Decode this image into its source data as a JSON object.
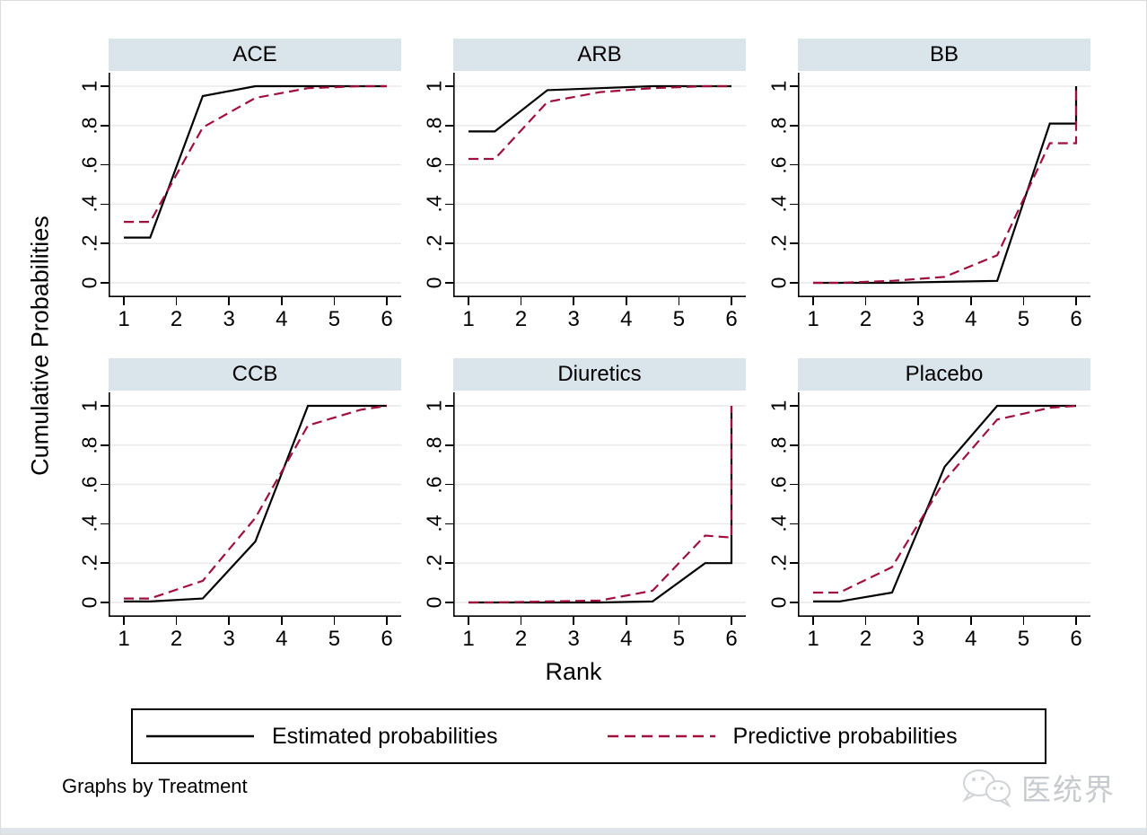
{
  "figure": {
    "y_axis_title": "Cumulative Probabilities",
    "x_axis_title": "Rank",
    "by_note": "Graphs by Treatment",
    "watermark_text": "医统界",
    "watermark_icon": "wechat-icon"
  },
  "colors": {
    "panel_title_bg": "#d9e4eb",
    "gridline": "#e8e8e8",
    "axis": "#000000",
    "estimated": "#000000",
    "predictive": "#a1103c",
    "watermark": "#c7cbce",
    "bottom_strip": "#dde4ea"
  },
  "chart_data": {
    "type": "line",
    "facet_by": "Treatment",
    "xlabel": "Rank",
    "ylabel": "Cumulative Probabilities",
    "xlim": [
      0.72,
      6.28
    ],
    "ylim": [
      -0.07,
      1.07
    ],
    "x_ticks": [
      1,
      2,
      3,
      4,
      5,
      6
    ],
    "y_ticks": [
      0,
      0.2,
      0.4,
      0.6,
      0.8,
      1
    ],
    "y_tick_labels": [
      "0",
      ".2",
      ".4",
      ".6",
      ".8",
      "1"
    ],
    "grid": "horizontal",
    "legend_position": "bottom",
    "styles": {
      "Estimated probabilities": {
        "stroke": "#000000",
        "dash": "solid"
      },
      "Predictive probabilities": {
        "stroke": "#a1103c",
        "dash": "dashed"
      }
    },
    "legend": [
      {
        "label": "Estimated probabilities",
        "dash": "solid",
        "color": "#000000"
      },
      {
        "label": "Predictive probabilities",
        "dash": "dashed",
        "color": "#a1103c"
      }
    ],
    "panels": [
      {
        "title": "ACE",
        "series": [
          {
            "name": "Estimated probabilities",
            "points": [
              [
                1,
                0.23
              ],
              [
                1.5,
                0.23
              ],
              [
                2.5,
                0.95
              ],
              [
                3.5,
                1
              ],
              [
                4.5,
                1
              ],
              [
                5.5,
                1
              ],
              [
                6,
                1
              ]
            ]
          },
          {
            "name": "Predictive probabilities",
            "points": [
              [
                1,
                0.31
              ],
              [
                1.5,
                0.31
              ],
              [
                2.5,
                0.79
              ],
              [
                3.5,
                0.94
              ],
              [
                4.5,
                0.99
              ],
              [
                5.5,
                1
              ],
              [
                6,
                1
              ]
            ]
          }
        ]
      },
      {
        "title": "ARB",
        "series": [
          {
            "name": "Estimated probabilities",
            "points": [
              [
                1,
                0.77
              ],
              [
                1.5,
                0.77
              ],
              [
                2.5,
                0.98
              ],
              [
                3.5,
                0.99
              ],
              [
                4.5,
                1
              ],
              [
                5.5,
                1
              ],
              [
                6,
                1
              ]
            ]
          },
          {
            "name": "Predictive probabilities",
            "points": [
              [
                1,
                0.63
              ],
              [
                1.5,
                0.63
              ],
              [
                2.5,
                0.92
              ],
              [
                3.5,
                0.97
              ],
              [
                4.5,
                0.99
              ],
              [
                5.5,
                1
              ],
              [
                6,
                1
              ]
            ]
          }
        ]
      },
      {
        "title": "BB",
        "series": [
          {
            "name": "Estimated probabilities",
            "points": [
              [
                1,
                0
              ],
              [
                1.5,
                0
              ],
              [
                2.5,
                0
              ],
              [
                3.5,
                0.005
              ],
              [
                4.5,
                0.01
              ],
              [
                5.5,
                0.81
              ],
              [
                6,
                0.81
              ],
              [
                6,
                1
              ]
            ]
          },
          {
            "name": "Predictive probabilities",
            "points": [
              [
                1,
                0
              ],
              [
                1.5,
                0
              ],
              [
                2.5,
                0.01
              ],
              [
                3.5,
                0.03
              ],
              [
                4.5,
                0.14
              ],
              [
                5.5,
                0.71
              ],
              [
                6,
                0.71
              ],
              [
                6,
                1
              ]
            ]
          }
        ]
      },
      {
        "title": "CCB",
        "series": [
          {
            "name": "Estimated probabilities",
            "points": [
              [
                1,
                0.005
              ],
              [
                1.5,
                0.005
              ],
              [
                2.5,
                0.02
              ],
              [
                3.5,
                0.31
              ],
              [
                4.5,
                1
              ],
              [
                5.5,
                1
              ],
              [
                6,
                1
              ]
            ]
          },
          {
            "name": "Predictive probabilities",
            "points": [
              [
                1,
                0.02
              ],
              [
                1.5,
                0.02
              ],
              [
                2.5,
                0.11
              ],
              [
                3.5,
                0.43
              ],
              [
                4.5,
                0.9
              ],
              [
                5.5,
                0.98
              ],
              [
                6,
                1
              ]
            ]
          }
        ]
      },
      {
        "title": "Diuretics",
        "series": [
          {
            "name": "Estimated probabilities",
            "points": [
              [
                1,
                0
              ],
              [
                1.5,
                0
              ],
              [
                2.5,
                0
              ],
              [
                3.5,
                0
              ],
              [
                4.5,
                0.005
              ],
              [
                5.5,
                0.2
              ],
              [
                6,
                0.2
              ],
              [
                6,
                1
              ]
            ]
          },
          {
            "name": "Predictive probabilities",
            "points": [
              [
                1,
                0
              ],
              [
                1.5,
                0
              ],
              [
                2.5,
                0.005
              ],
              [
                3.5,
                0.01
              ],
              [
                4.5,
                0.06
              ],
              [
                5.5,
                0.34
              ],
              [
                6,
                0.33
              ],
              [
                6,
                1
              ]
            ]
          }
        ]
      },
      {
        "title": "Placebo",
        "series": [
          {
            "name": "Estimated probabilities",
            "points": [
              [
                1,
                0.005
              ],
              [
                1.5,
                0.005
              ],
              [
                2.5,
                0.05
              ],
              [
                3.5,
                0.69
              ],
              [
                4.5,
                1
              ],
              [
                5.5,
                1
              ],
              [
                6,
                1
              ]
            ]
          },
          {
            "name": "Predictive probabilities",
            "points": [
              [
                1,
                0.05
              ],
              [
                1.5,
                0.05
              ],
              [
                2.5,
                0.18
              ],
              [
                3.5,
                0.62
              ],
              [
                4.5,
                0.93
              ],
              [
                5.5,
                0.99
              ],
              [
                6,
                1
              ]
            ]
          }
        ]
      }
    ]
  }
}
